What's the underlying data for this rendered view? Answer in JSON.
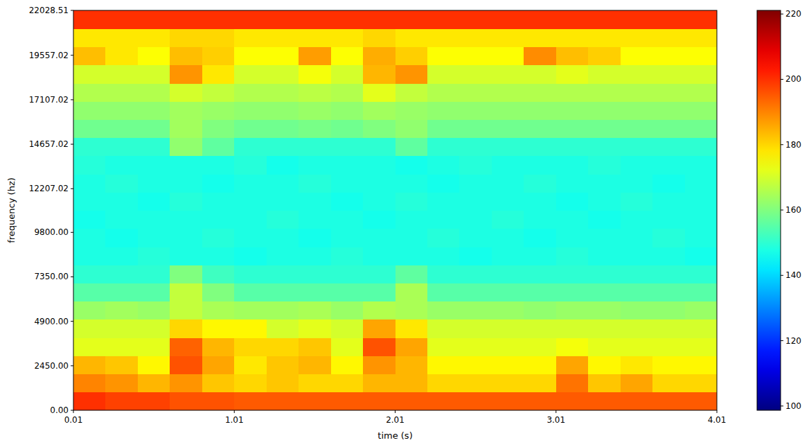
{
  "chart_data": {
    "type": "heatmap",
    "xlabel": "time (s)",
    "ylabel": "frequency (hz)",
    "xlim": [
      0.01,
      4.01
    ],
    "xticks": [
      0.01,
      1.01,
      2.01,
      3.01,
      4.01
    ],
    "ylim": [
      0,
      22028.51
    ],
    "yticks": [
      {
        "value": 0,
        "label": "0.00"
      },
      {
        "value": 2450,
        "label": "2450.00"
      },
      {
        "value": 4900,
        "label": "4900.00"
      },
      {
        "value": 7350,
        "label": "7350.00"
      },
      {
        "value": 9800,
        "label": "9800.00"
      },
      {
        "value": 12207.02,
        "label": "12207.02"
      },
      {
        "value": 14657.02,
        "label": "14657.02"
      },
      {
        "value": 17107.02,
        "label": "17107.02"
      },
      {
        "value": 19557.02,
        "label": "19557.02"
      },
      {
        "value": 22028.51,
        "label": "22028.51"
      }
    ],
    "cells": [
      [
        200,
        198,
        198,
        196,
        196,
        195,
        195,
        195,
        195,
        195,
        195,
        195,
        195,
        195,
        195,
        195,
        195,
        195,
        195,
        195
      ],
      [
        190,
        188,
        184,
        188,
        182,
        180,
        182,
        180,
        180,
        184,
        184,
        180,
        180,
        180,
        180,
        192,
        182,
        186,
        180,
        180
      ],
      [
        184,
        182,
        176,
        196,
        186,
        178,
        182,
        184,
        176,
        188,
        184,
        176,
        176,
        176,
        176,
        186,
        176,
        178,
        176,
        176
      ],
      [
        172,
        172,
        172,
        194,
        184,
        180,
        180,
        182,
        172,
        196,
        186,
        172,
        172,
        172,
        172,
        174,
        172,
        172,
        172,
        172
      ],
      [
        170,
        170,
        170,
        180,
        176,
        176,
        170,
        172,
        170,
        186,
        178,
        170,
        170,
        170,
        170,
        170,
        170,
        170,
        170,
        170
      ],
      [
        163,
        164,
        163,
        168,
        165,
        164,
        164,
        165,
        163,
        166,
        165,
        163,
        163,
        163,
        162,
        163,
        163,
        162,
        162,
        163
      ],
      [
        155,
        155,
        155,
        168,
        160,
        155,
        155,
        155,
        155,
        155,
        165,
        155,
        155,
        155,
        155,
        155,
        155,
        155,
        155,
        155
      ],
      [
        150,
        150,
        150,
        160,
        152,
        150,
        150,
        150,
        150,
        150,
        156,
        150,
        150,
        150,
        150,
        150,
        150,
        150,
        150,
        150
      ],
      [
        148,
        148,
        149,
        148,
        148,
        147,
        148,
        148,
        149,
        148,
        148,
        148,
        147,
        148,
        148,
        149,
        148,
        148,
        148,
        147
      ],
      [
        148,
        147,
        148,
        148,
        149,
        148,
        148,
        147,
        148,
        148,
        148,
        149,
        148,
        148,
        147,
        148,
        148,
        148,
        149,
        148
      ],
      [
        147,
        148,
        148,
        148,
        148,
        148,
        149,
        148,
        148,
        147,
        148,
        148,
        148,
        149,
        148,
        148,
        147,
        148,
        148,
        148
      ],
      [
        148,
        148,
        147,
        149,
        148,
        148,
        148,
        148,
        147,
        148,
        149,
        148,
        148,
        148,
        148,
        147,
        148,
        149,
        148,
        148
      ],
      [
        148,
        149,
        148,
        148,
        147,
        148,
        148,
        149,
        148,
        148,
        148,
        147,
        148,
        148,
        149,
        148,
        148,
        148,
        147,
        148
      ],
      [
        149,
        148,
        148,
        148,
        148,
        149,
        147,
        148,
        148,
        148,
        147,
        148,
        149,
        148,
        148,
        148,
        149,
        148,
        148,
        148
      ],
      [
        150,
        150,
        150,
        162,
        156,
        150,
        150,
        150,
        150,
        150,
        156,
        150,
        150,
        150,
        150,
        150,
        150,
        150,
        150,
        150
      ],
      [
        158,
        158,
        158,
        164,
        160,
        158,
        158,
        159,
        158,
        160,
        162,
        158,
        158,
        158,
        158,
        158,
        158,
        158,
        158,
        158
      ],
      [
        162,
        162,
        162,
        164,
        163,
        162,
        162,
        163,
        162,
        164,
        163,
        162,
        162,
        162,
        162,
        162,
        162,
        162,
        162,
        162
      ],
      [
        166,
        166,
        166,
        170,
        168,
        166,
        166,
        167,
        166,
        172,
        168,
        166,
        166,
        166,
        166,
        166,
        166,
        166,
        166,
        166
      ],
      [
        170,
        170,
        170,
        188,
        178,
        170,
        170,
        174,
        170,
        184,
        188,
        170,
        170,
        170,
        170,
        172,
        170,
        170,
        170,
        170
      ],
      [
        183,
        178,
        175,
        183,
        181,
        175,
        175,
        187,
        175,
        185,
        181,
        175,
        175,
        175,
        189,
        183,
        181,
        175,
        175,
        175
      ],
      [
        178,
        178,
        178,
        180,
        180,
        178,
        178,
        178,
        178,
        180,
        178,
        178,
        178,
        178,
        178,
        178,
        178,
        178,
        178,
        178
      ],
      [
        200,
        200,
        200,
        200,
        200,
        200,
        200,
        200,
        200,
        200,
        200,
        200,
        200,
        200,
        200,
        200,
        200,
        200,
        200,
        200
      ]
    ],
    "colorbar": {
      "range": [
        98.7,
        221.1
      ],
      "ticks": [
        100,
        120,
        140,
        160,
        180,
        200,
        220
      ]
    }
  }
}
